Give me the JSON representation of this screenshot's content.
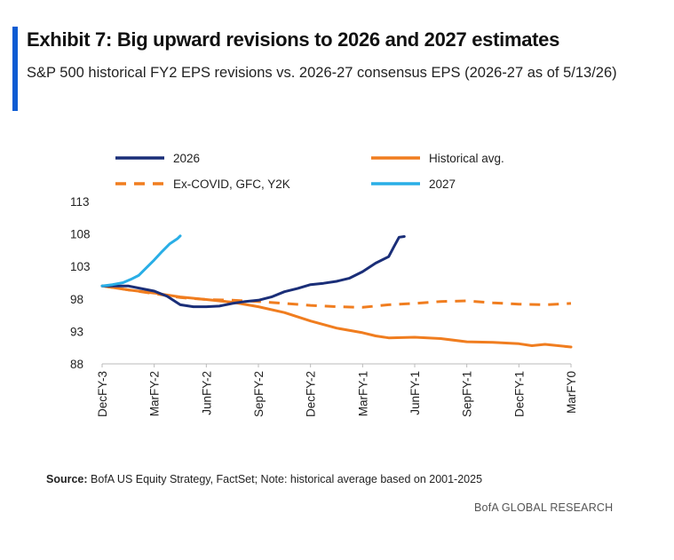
{
  "header": {
    "title": "Exhibit 7: Big upward revisions to 2026 and 2027 estimates",
    "subtitle": "S&P 500 historical FY2 EPS revisions vs. 2026-27 consensus EPS (2026-27 as of 5/13/26)"
  },
  "footer": {
    "source_label": "Source:",
    "source_text": "BofA US Equity Strategy, FactSet; Note: historical average based on 2001-2025",
    "brand": "BofA GLOBAL RESEARCH"
  },
  "colors": {
    "accent": "#0b5bd3",
    "s2026": "#1a2e78",
    "s2027": "#29aee6",
    "hist": "#f07d1f",
    "excovid": "#f07d1f"
  },
  "chart_data": {
    "type": "line",
    "ylim": [
      88,
      113
    ],
    "yticks": [
      113,
      108,
      103,
      98,
      93,
      88
    ],
    "xlim": [
      0,
      18
    ],
    "xticks": [
      {
        "x": 0,
        "label": "DecFY-3"
      },
      {
        "x": 2,
        "label": "MarFY-2"
      },
      {
        "x": 4,
        "label": "JunFY-2"
      },
      {
        "x": 6,
        "label": "SepFY-2"
      },
      {
        "x": 8,
        "label": "DecFY-2"
      },
      {
        "x": 10,
        "label": "MarFY-1"
      },
      {
        "x": 12,
        "label": "JunFY-1"
      },
      {
        "x": 14,
        "label": "SepFY-1"
      },
      {
        "x": 16,
        "label": "DecFY-1"
      },
      {
        "x": 18,
        "label": "MarFY0"
      }
    ],
    "legend": {
      "placement": "top",
      "columns": 2
    },
    "series": [
      {
        "name": "2026",
        "key": "s2026",
        "style": "solid",
        "points": [
          [
            0,
            100
          ],
          [
            0.5,
            100
          ],
          [
            1,
            100
          ],
          [
            1.5,
            99.6
          ],
          [
            2,
            99.2
          ],
          [
            2.5,
            98.4
          ],
          [
            3,
            97.1
          ],
          [
            3.5,
            96.8
          ],
          [
            4,
            96.8
          ],
          [
            4.5,
            96.9
          ],
          [
            5,
            97.3
          ],
          [
            5.5,
            97.6
          ],
          [
            6,
            97.8
          ],
          [
            6.5,
            98.3
          ],
          [
            7,
            99.1
          ],
          [
            7.5,
            99.6
          ],
          [
            8,
            100.2
          ],
          [
            8.5,
            100.4
          ],
          [
            9,
            100.7
          ],
          [
            9.5,
            101.2
          ],
          [
            10,
            102.2
          ],
          [
            10.5,
            103.5
          ],
          [
            11,
            104.5
          ],
          [
            11.2,
            106
          ],
          [
            11.4,
            107.5
          ],
          [
            11.6,
            107.6
          ]
        ]
      },
      {
        "name": "Historical avg.",
        "key": "hist",
        "style": "solid",
        "points": [
          [
            0,
            100
          ],
          [
            1,
            99.4
          ],
          [
            2,
            98.9
          ],
          [
            3,
            98.3
          ],
          [
            4,
            97.9
          ],
          [
            5,
            97.5
          ],
          [
            6,
            96.8
          ],
          [
            7,
            95.9
          ],
          [
            8,
            94.6
          ],
          [
            9,
            93.5
          ],
          [
            10,
            92.8
          ],
          [
            10.5,
            92.3
          ],
          [
            11,
            92
          ],
          [
            12,
            92.1
          ],
          [
            13,
            91.9
          ],
          [
            14,
            91.4
          ],
          [
            15,
            91.3
          ],
          [
            16,
            91.1
          ],
          [
            16.5,
            90.8
          ],
          [
            17,
            91.0
          ],
          [
            18,
            90.6
          ]
        ]
      },
      {
        "name": "Ex-COVID, GFC, Y2K",
        "key": "excovid",
        "style": "dashed",
        "points": [
          [
            0,
            100
          ],
          [
            1,
            99.4
          ],
          [
            2,
            98.8
          ],
          [
            3,
            98.2
          ],
          [
            4,
            97.9
          ],
          [
            5,
            97.8
          ],
          [
            6,
            97.6
          ],
          [
            7,
            97.3
          ],
          [
            8,
            97
          ],
          [
            9,
            96.8
          ],
          [
            10,
            96.7
          ],
          [
            11,
            97.1
          ],
          [
            12,
            97.3
          ],
          [
            13,
            97.6
          ],
          [
            14,
            97.7
          ],
          [
            15,
            97.4
          ],
          [
            16,
            97.2
          ],
          [
            17,
            97.1
          ],
          [
            18,
            97.3
          ]
        ]
      },
      {
        "name": "2027",
        "key": "s2027",
        "style": "solid",
        "points": [
          [
            0,
            100
          ],
          [
            0.4,
            100.2
          ],
          [
            0.8,
            100.5
          ],
          [
            1.1,
            101
          ],
          [
            1.4,
            101.6
          ],
          [
            1.7,
            102.8
          ],
          [
            2,
            104
          ],
          [
            2.3,
            105.3
          ],
          [
            2.6,
            106.5
          ],
          [
            2.9,
            107.3
          ],
          [
            3.0,
            107.7
          ]
        ]
      }
    ]
  }
}
